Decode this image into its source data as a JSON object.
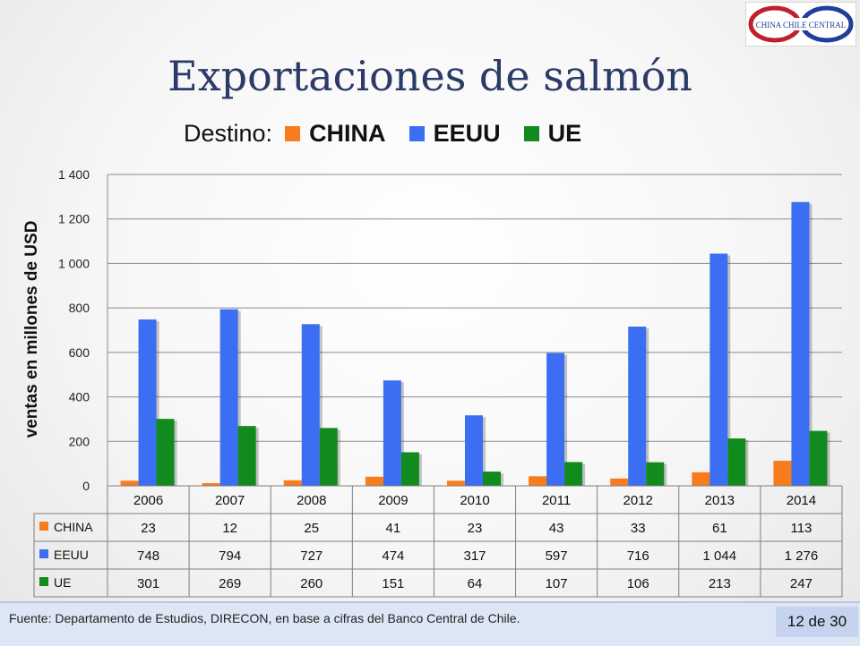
{
  "slide": {
    "title": "Exportaciones de salmón",
    "legend_title": "Destino:",
    "source": "Fuente: Departamento de Estudios, DIRECON, en base a cifras del Banco  Central de Chile.",
    "page": "12 de 30",
    "logo_text": "CHINA CHILE CENTRAL"
  },
  "chart_data": {
    "type": "bar",
    "ylabel": "ventas en millones de  USD",
    "ylim": [
      0,
      1400
    ],
    "yticks": [
      0,
      200,
      400,
      600,
      800,
      1000,
      1200,
      1400
    ],
    "ytick_labels": [
      "0",
      "200",
      "400",
      "600",
      "800",
      "1 000",
      "1 200",
      "1 400"
    ],
    "categories": [
      "2006",
      "2007",
      "2008",
      "2009",
      "2010",
      "2011",
      "2012",
      "2013",
      "2014"
    ],
    "grid": true,
    "series": [
      {
        "name": "CHINA",
        "color": "#f97c1c",
        "values": [
          23,
          12,
          25,
          41,
          23,
          43,
          33,
          61,
          113
        ],
        "labels": [
          "23",
          "12",
          "25",
          "41",
          "23",
          "43",
          "33",
          "61",
          "113"
        ]
      },
      {
        "name": "EEUU",
        "color": "#3b6ef2",
        "values": [
          748,
          794,
          727,
          474,
          317,
          597,
          716,
          1044,
          1276
        ],
        "labels": [
          "748",
          "794",
          "727",
          "474",
          "317",
          "597",
          "716",
          "1 044",
          "1 276"
        ]
      },
      {
        "name": "UE",
        "color": "#118a1e",
        "values": [
          301,
          269,
          260,
          151,
          64,
          107,
          106,
          213,
          247
        ],
        "labels": [
          "301",
          "269",
          "260",
          "151",
          "64",
          "107",
          "106",
          "213",
          "247"
        ]
      }
    ]
  }
}
